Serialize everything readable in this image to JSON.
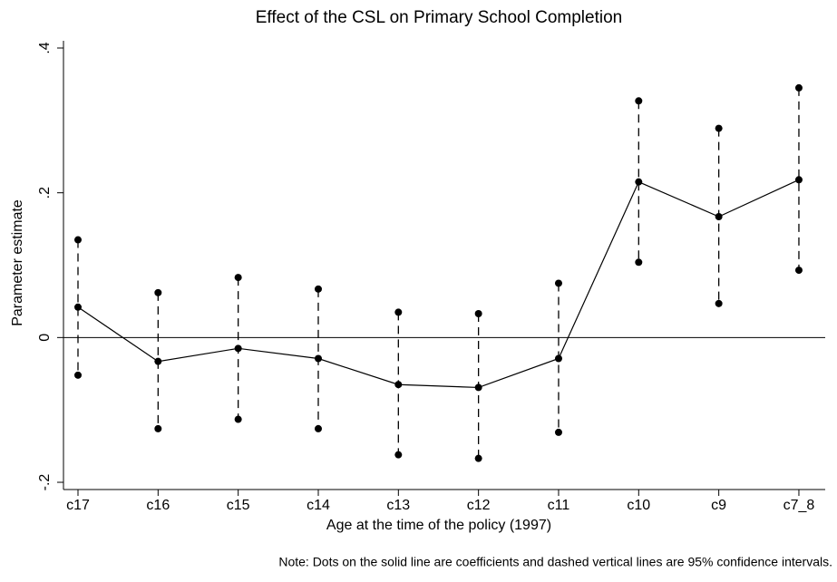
{
  "chart_data": {
    "type": "line",
    "title": "Effect of the CSL on Primary School Completion",
    "x_label": "Age at the time of the policy (1997)",
    "y_label": "Parameter estimate",
    "note": "Note: Dots on the solid line are coefficients and dashed vertical lines are 95% confidence intervals.",
    "categories": [
      "c17",
      "c16",
      "c15",
      "c14",
      "c13",
      "c12",
      "c11",
      "c10",
      "c9",
      "c7_8"
    ],
    "values": [
      0.042,
      -0.033,
      -0.015,
      -0.029,
      -0.065,
      -0.069,
      -0.029,
      0.215,
      0.167,
      0.218
    ],
    "upper": [
      0.135,
      0.062,
      0.083,
      0.067,
      0.035,
      0.033,
      0.075,
      0.327,
      0.289,
      0.345
    ],
    "lower": [
      -0.052,
      -0.126,
      -0.113,
      -0.126,
      -0.162,
      -0.167,
      -0.131,
      0.104,
      0.047,
      0.093
    ],
    "color": "#000000",
    "ylim": [
      -0.21,
      0.41
    ],
    "yticks": [
      {
        "value": -0.2,
        "label": "-.2"
      },
      0,
      {
        "value": 0.2,
        "label": ".2"
      },
      {
        "value": 0.4,
        "label": ".4"
      }
    ],
    "yline": 0
  }
}
